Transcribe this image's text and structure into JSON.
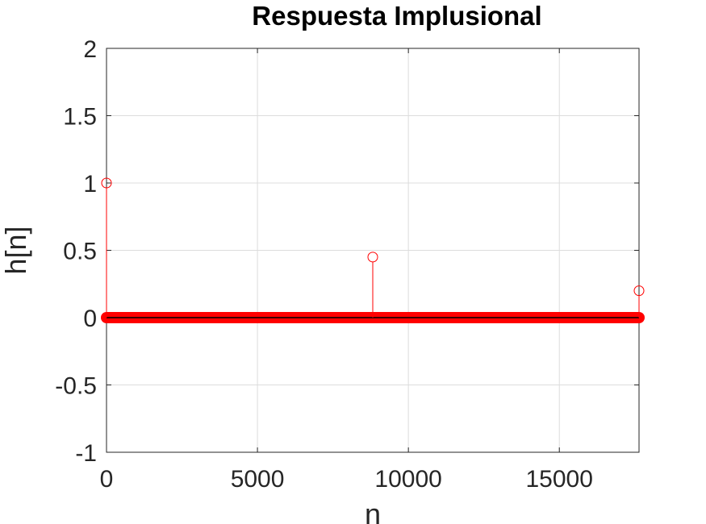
{
  "chart_data": {
    "type": "stem",
    "title": "Respuesta Implusional",
    "xlabel": "n",
    "ylabel": "h[n]",
    "xlim": [
      0,
      17640
    ],
    "ylim": [
      -1,
      2
    ],
    "xticks": [
      0,
      5000,
      10000,
      15000
    ],
    "xtick_labels": [
      "0",
      "5000",
      "10000",
      "15000"
    ],
    "yticks": [
      -1,
      -0.5,
      0,
      0.5,
      1,
      1.5,
      2
    ],
    "ytick_labels": [
      "-1",
      "-0.5",
      "0",
      "0.5",
      "1",
      "1.5",
      "2"
    ],
    "grid": true,
    "series": [
      {
        "marker": "circle",
        "color": "#ff0000",
        "nonzero_points": [
          {
            "x": 0,
            "y": 1
          },
          {
            "x": 8820,
            "y": 0.45
          },
          {
            "x": 17640,
            "y": 0.2
          }
        ],
        "baseline_value": 0
      }
    ]
  }
}
